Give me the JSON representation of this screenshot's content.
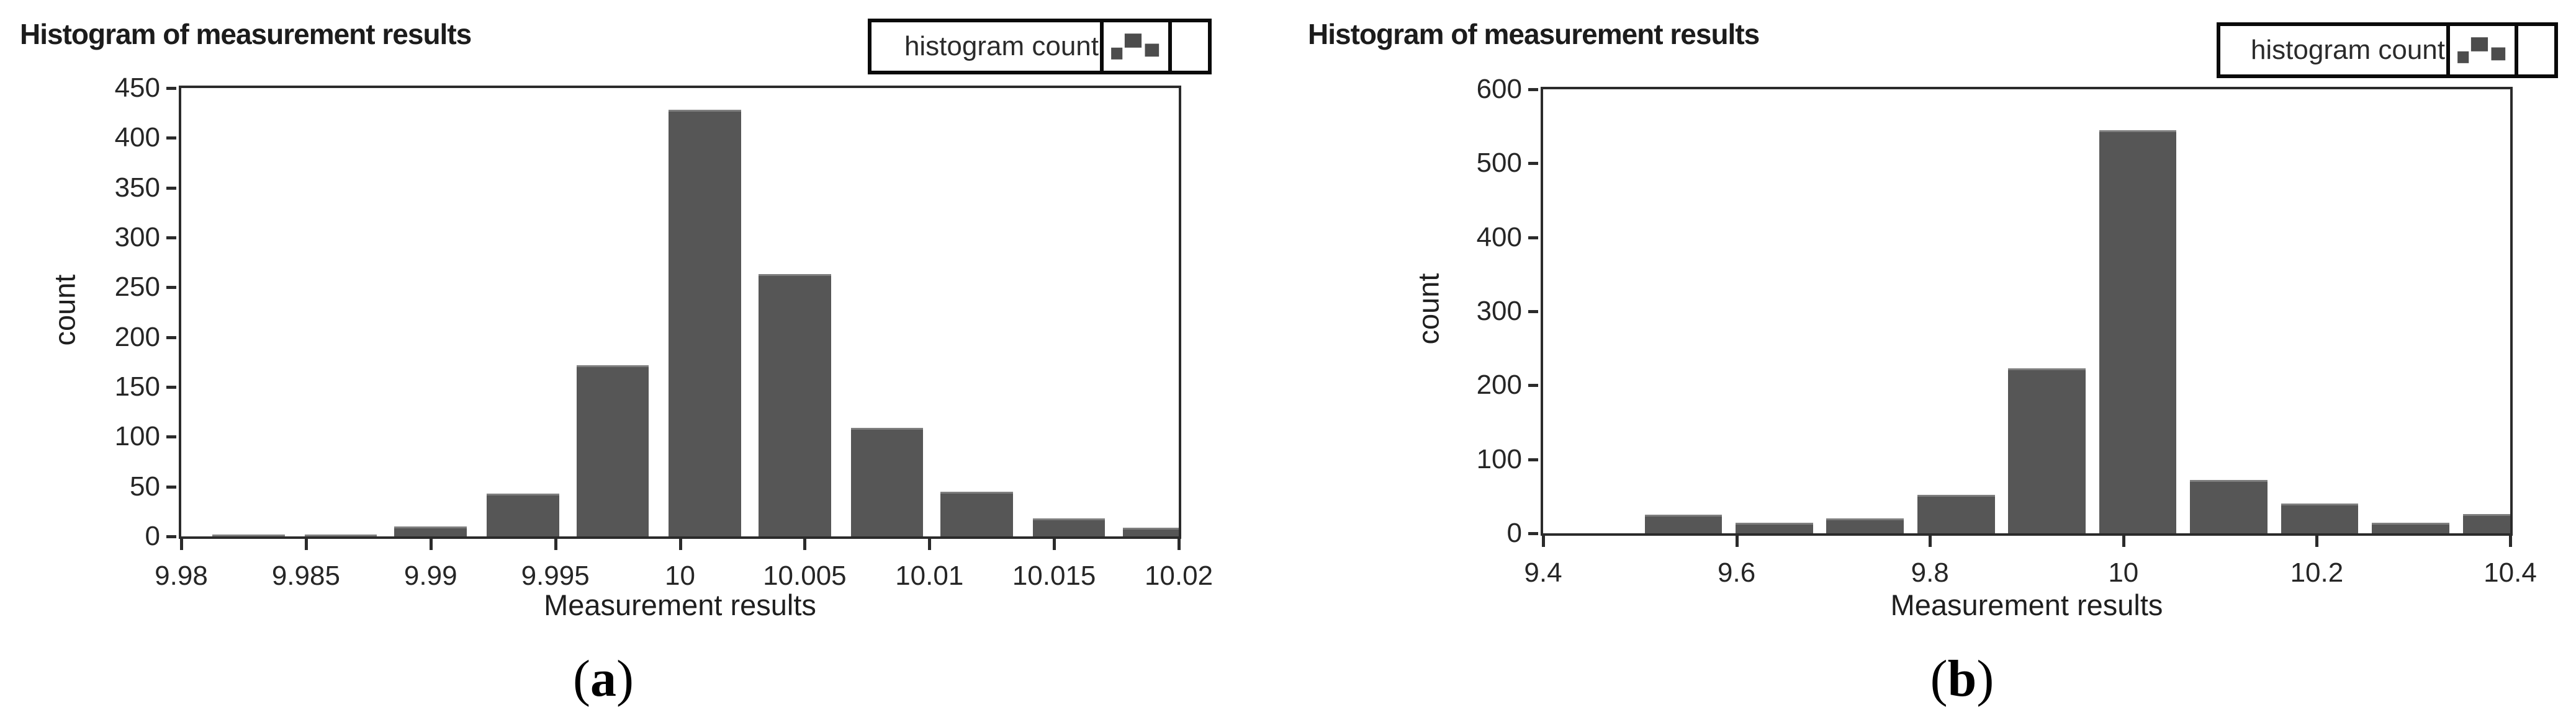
{
  "figure": {
    "panels": [
      {
        "title": "Histogram of measurement results",
        "legend_label": "histogram count",
        "legend_icon": "mini-histogram-icon",
        "caption_open": "(",
        "caption_letter": "a",
        "caption_close": ")"
      },
      {
        "title": "Histogram of measurement results",
        "legend_label": "histogram count",
        "legend_icon": "mini-histogram-icon",
        "caption_open": "(",
        "caption_letter": "b",
        "caption_close": ")"
      }
    ]
  },
  "chart_data": [
    {
      "type": "bar",
      "title": "Histogram of measurement results",
      "legend": "histogram count",
      "legend_position": "top-right",
      "xlabel": "Measurement results",
      "ylabel": "count",
      "xlim": [
        9.98,
        10.02
      ],
      "ylim": [
        0,
        450
      ],
      "grid": false,
      "bar_color": "#565656",
      "bar_width": 0.0029,
      "x_tick_labels": [
        "9.98",
        "9.985",
        "9.99",
        "9.995",
        "10",
        "10.005",
        "10.01",
        "10.015",
        "10.02"
      ],
      "y_ticks": [
        0,
        50,
        100,
        150,
        200,
        250,
        300,
        350,
        400,
        450
      ],
      "x": [
        9.9827,
        9.9864,
        9.99,
        9.9937,
        9.9973,
        10.001,
        10.0046,
        10.0083,
        10.0119,
        10.0156,
        10.0192
      ],
      "values": [
        2,
        2,
        10,
        43,
        172,
        428,
        263,
        109,
        45,
        18,
        9
      ]
    },
    {
      "type": "bar",
      "title": "Histogram of measurement results",
      "legend": "histogram count",
      "legend_position": "top-right",
      "xlabel": "Measurement results",
      "ylabel": "count",
      "xlim": [
        9.4,
        10.4
      ],
      "ylim": [
        0,
        600
      ],
      "grid": false,
      "bar_color": "#565656",
      "bar_width": 0.08,
      "x_tick_labels": [
        "9.4",
        "9.6",
        "9.8",
        "10",
        "10.2",
        "10.4"
      ],
      "y_ticks": [
        0,
        100,
        200,
        300,
        400,
        500,
        600
      ],
      "x": [
        9.545,
        9.639,
        9.733,
        9.827,
        9.921,
        10.015,
        10.109,
        10.203,
        10.297,
        10.391
      ],
      "values": [
        25,
        14,
        20,
        52,
        223,
        545,
        72,
        40,
        14,
        26
      ]
    }
  ]
}
